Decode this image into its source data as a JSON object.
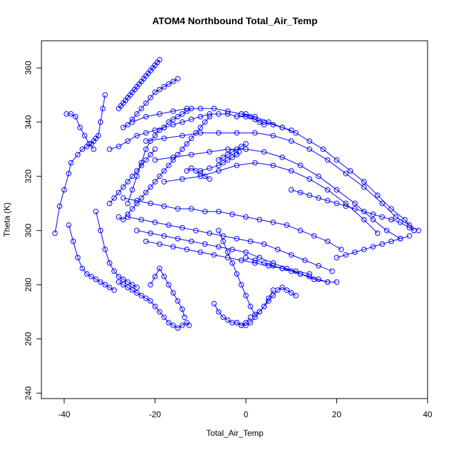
{
  "chart_data": {
    "type": "scatter",
    "title": "ATOM4 Northbound Total_Air_Temp",
    "xlabel": "Total_Air_Temp",
    "ylabel": "Theta (K)",
    "xlim": [
      -45,
      40
    ],
    "ylim": [
      238,
      370
    ],
    "x_ticks": [
      -40,
      -20,
      0,
      20,
      40
    ],
    "y_ticks": [
      240,
      260,
      280,
      300,
      320,
      340,
      360
    ],
    "grid": false,
    "legend": "none",
    "color": "#0000ff",
    "marker": "open-circle",
    "connected": true,
    "series": [
      {
        "x": [
          -42,
          -41,
          -40,
          -39,
          -38.5,
          -37,
          -36,
          -35,
          -34,
          -33.5,
          -33,
          -32.5,
          -32,
          -31.5,
          -31
        ],
        "y": [
          299,
          309,
          315,
          321,
          325,
          328,
          330,
          331,
          332,
          333,
          334,
          335,
          340,
          345,
          350
        ]
      },
      {
        "x": [
          -39.5,
          -38.5,
          -37.5,
          -36.5,
          -35.5,
          -34.5,
          -33.5
        ],
        "y": [
          343,
          343,
          342,
          338,
          335,
          332,
          330
        ]
      },
      {
        "x": [
          -39,
          -38,
          -37,
          -36,
          -35,
          -34,
          -33,
          -32,
          -31,
          -30,
          -29
        ],
        "y": [
          302,
          296,
          290,
          286,
          284,
          283,
          282,
          281,
          280,
          279,
          278
        ]
      },
      {
        "x": [
          -33,
          -32,
          -31,
          -30,
          -29,
          -28,
          -27,
          -26,
          -25,
          -24
        ],
        "y": [
          307,
          300,
          293,
          288,
          285,
          283,
          282,
          281,
          280,
          279
        ]
      },
      {
        "x": [
          -28,
          -27,
          -26,
          -25,
          -24,
          -23,
          -22,
          -21,
          -20,
          -19,
          -18,
          -17,
          -16,
          -15,
          -14,
          -13,
          -12.5
        ],
        "y": [
          281,
          280,
          279,
          278,
          277,
          276,
          275,
          274,
          272,
          270,
          268,
          266,
          265,
          264,
          265,
          266,
          265
        ]
      },
      {
        "x": [
          -21,
          -20,
          -19,
          -18,
          -17,
          -16,
          -15,
          -14,
          -13.5
        ],
        "y": [
          280,
          283,
          286,
          283,
          280,
          277,
          274,
          271,
          268
        ]
      },
      {
        "x": [
          -28,
          -27.5,
          -27,
          -26.5,
          -26,
          -25.5,
          -25,
          -24.5,
          -24,
          -23.5,
          -23,
          -22.5,
          -22,
          -21.5,
          -21,
          -20.5,
          -20,
          -19.5,
          -19
        ],
        "y": [
          345,
          346,
          347,
          348,
          349,
          350,
          351,
          352,
          353,
          354,
          355,
          356,
          357,
          358,
          359,
          360,
          361,
          362,
          363
        ]
      },
      {
        "x": [
          -27,
          -26,
          -25,
          -24,
          -23,
          -22,
          -21,
          -20,
          -19,
          -18,
          -17,
          -16,
          -15
        ],
        "y": [
          338,
          339,
          341,
          343,
          345,
          347,
          349,
          351,
          352,
          353,
          354,
          355,
          356
        ]
      },
      {
        "x": [
          -26,
          -25,
          -24,
          -23,
          -22,
          -21,
          -20,
          -19,
          -18,
          -17,
          -16,
          -15,
          -14,
          -13,
          -12
        ],
        "y": [
          310,
          315,
          320,
          325,
          330,
          333,
          335,
          337,
          338,
          340,
          341,
          342,
          343,
          344,
          345
        ]
      },
      {
        "x": [
          -28,
          -27,
          -26,
          -25,
          -24,
          -23,
          -22,
          -21,
          -20,
          -19,
          -18,
          -17,
          -16,
          -15,
          -14,
          -13,
          -12,
          -11,
          -10,
          -9,
          -8
        ],
        "y": [
          305,
          304,
          306,
          308,
          310,
          312,
          314,
          316,
          318,
          320,
          322,
          324,
          326,
          328,
          330,
          332,
          334,
          336,
          338,
          340,
          342
        ]
      },
      {
        "x": [
          -30,
          -28,
          -26,
          -24,
          -22,
          -20,
          -18,
          -16,
          -14,
          -12,
          -10,
          -8,
          -6,
          -4,
          -2,
          0,
          2,
          4,
          6,
          8,
          10
        ],
        "y": [
          330,
          331,
          333,
          335,
          336,
          337,
          338,
          339,
          340,
          341,
          342,
          343,
          343,
          343,
          342,
          342,
          341,
          340,
          339,
          338,
          337
        ]
      },
      {
        "x": [
          -25,
          -22,
          -19,
          -16,
          -13,
          -10,
          -7,
          -4,
          -1,
          2,
          5,
          8,
          11,
          14,
          17,
          20,
          23,
          26,
          29,
          32,
          35,
          37
        ],
        "y": [
          340,
          342,
          343,
          344,
          345,
          345,
          345,
          344,
          343,
          342,
          340,
          338,
          336,
          333,
          330,
          326,
          322,
          318,
          313,
          308,
          304,
          300
        ]
      },
      {
        "x": [
          -22,
          -18,
          -14,
          -10,
          -6,
          -2,
          2,
          6,
          10,
          14,
          18,
          22,
          26,
          30,
          33,
          36,
          38
        ],
        "y": [
          333,
          334,
          335,
          336,
          336,
          336,
          336,
          335,
          333,
          330,
          326,
          321,
          316,
          310,
          305,
          302,
          300
        ]
      },
      {
        "x": [
          -20,
          -16,
          -12,
          -8,
          -4,
          0,
          4,
          8,
          12,
          16,
          20,
          24,
          28,
          31,
          34
        ],
        "y": [
          326,
          327,
          328,
          329,
          330,
          330,
          329,
          327,
          324,
          320,
          315,
          310,
          304,
          300,
          297
        ]
      },
      {
        "x": [
          -18,
          -14,
          -10,
          -6,
          -2,
          2,
          6,
          10,
          14,
          18,
          22,
          26,
          29
        ],
        "y": [
          318,
          319,
          320,
          322,
          324,
          325,
          324,
          322,
          319,
          315,
          310,
          304,
          299
        ]
      },
      {
        "x": [
          -10,
          -8,
          -6,
          -5,
          -4,
          -3,
          -2,
          -1.5
        ],
        "y": [
          322,
          323,
          324,
          325,
          326,
          327,
          328,
          329
        ]
      },
      {
        "x": [
          -6,
          -5,
          -4,
          -3,
          -2,
          -1,
          0
        ],
        "y": [
          326,
          327,
          328,
          329,
          330,
          331,
          332
        ]
      },
      {
        "x": [
          -27,
          -24,
          -21,
          -18,
          -15,
          -12,
          -9,
          -6,
          -3,
          0,
          3,
          6,
          9,
          12,
          15,
          18,
          21
        ],
        "y": [
          312,
          311,
          310,
          309,
          308,
          308,
          307,
          307,
          306,
          305,
          304,
          303,
          302,
          300,
          298,
          296,
          293
        ]
      },
      {
        "x": [
          -26,
          -23,
          -20,
          -17,
          -14,
          -11,
          -8,
          -5,
          -2,
          1,
          4,
          7,
          10,
          13,
          16,
          19
        ],
        "y": [
          305,
          304,
          303,
          302,
          301,
          300,
          299,
          298,
          297,
          296,
          295,
          293,
          291,
          289,
          287,
          285
        ]
      },
      {
        "x": [
          -24,
          -21,
          -18,
          -15,
          -12,
          -9,
          -6,
          -3,
          0,
          3,
          6,
          9,
          12,
          15,
          18
        ],
        "y": [
          300,
          299,
          298,
          297,
          296,
          295,
          294,
          293,
          292,
          290,
          288,
          286,
          284,
          282,
          281
        ]
      },
      {
        "x": [
          -22,
          -19,
          -16,
          -13,
          -10,
          -7,
          -4,
          -1,
          2,
          5,
          8,
          11,
          14
        ],
        "y": [
          296,
          295,
          294,
          293,
          292,
          291,
          290,
          289,
          288,
          287,
          286,
          285,
          284
        ]
      },
      {
        "x": [
          -6,
          -5,
          -4,
          -3,
          -2,
          -1,
          0,
          1,
          2,
          3,
          4,
          5,
          6
        ],
        "y": [
          300,
          296,
          292,
          288,
          284,
          280,
          276,
          272,
          269,
          270,
          272,
          275,
          278
        ]
      },
      {
        "x": [
          -7,
          -6,
          -5,
          -4,
          -3,
          -2,
          -1,
          0,
          1
        ],
        "y": [
          273,
          270,
          268,
          267,
          266,
          266,
          265,
          266,
          268
        ]
      },
      {
        "x": [
          -2,
          -1,
          0,
          1,
          2,
          3,
          4,
          5,
          6,
          7,
          8,
          9,
          10,
          11
        ],
        "y": [
          266,
          265,
          265,
          266,
          268,
          270,
          272,
          274,
          276,
          278,
          279,
          278,
          277,
          276
        ]
      },
      {
        "x": [
          0,
          2,
          4,
          6,
          8,
          10,
          12,
          14,
          16,
          18,
          20
        ],
        "y": [
          290,
          289,
          288,
          287,
          286,
          285,
          284,
          283,
          282,
          281,
          281
        ]
      },
      {
        "x": [
          10,
          12,
          14,
          16,
          18,
          20,
          22,
          24,
          26,
          28,
          30,
          32,
          34,
          36,
          37
        ],
        "y": [
          315,
          314,
          313,
          312,
          311,
          310,
          309,
          308,
          307,
          306,
          305,
          304,
          303,
          301,
          300
        ]
      },
      {
        "x": [
          20,
          22,
          24,
          26,
          28,
          30,
          32,
          34,
          36
        ],
        "y": [
          290,
          291,
          292,
          293,
          294,
          295,
          296,
          297,
          298
        ]
      },
      {
        "x": [
          -30,
          -29,
          -28,
          -27,
          -26,
          -25,
          -24,
          -23,
          -22,
          -21,
          -20
        ],
        "y": [
          310,
          312,
          314,
          316,
          318,
          320,
          322,
          324,
          326,
          328,
          330
        ]
      },
      {
        "x": [
          -13,
          -12,
          -11,
          -10,
          -9,
          -8
        ],
        "y": [
          322,
          323,
          322,
          321,
          320,
          319
        ]
      },
      {
        "x": [
          -1,
          0,
          1,
          2,
          3,
          4
        ],
        "y": [
          343,
          343,
          342,
          341,
          340,
          339
        ]
      }
    ]
  }
}
